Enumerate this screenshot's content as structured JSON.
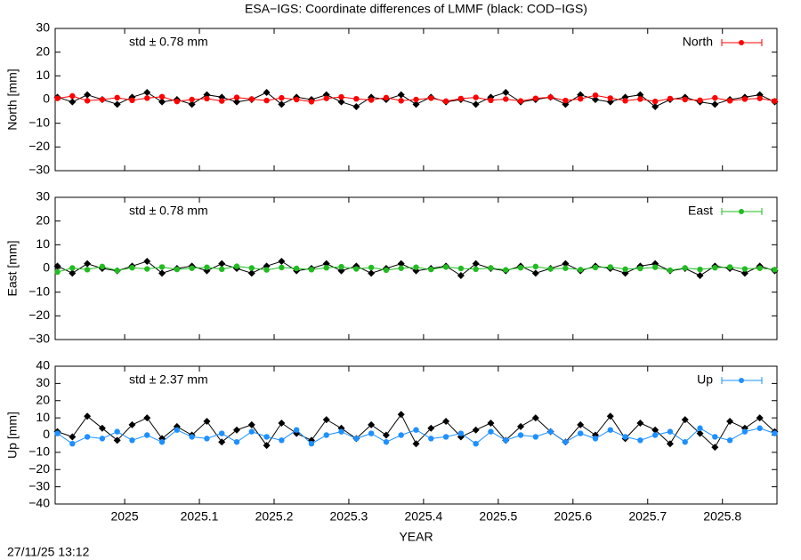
{
  "chart_data": [
    {
      "type": "line",
      "title": "ESA−IGS: Coordinate differences of LMMF (black: COD−IGS)",
      "ylabel": "North [mm]",
      "annotation": "std ± 0.78 mm",
      "x": [
        2024.91,
        2024.93,
        2024.95,
        2024.97,
        2024.99,
        2025.01,
        2025.03,
        2025.05,
        2025.07,
        2025.09,
        2025.11,
        2025.13,
        2025.15,
        2025.17,
        2025.19,
        2025.21,
        2025.23,
        2025.25,
        2025.27,
        2025.29,
        2025.31,
        2025.33,
        2025.35,
        2025.37,
        2025.39,
        2025.41,
        2025.43,
        2025.45,
        2025.47,
        2025.49,
        2025.51,
        2025.53,
        2025.55,
        2025.57,
        2025.59,
        2025.61,
        2025.63,
        2025.65,
        2025.67,
        2025.69,
        2025.71,
        2025.73,
        2025.75,
        2025.77,
        2025.79,
        2025.81,
        2025.83,
        2025.85,
        2025.87
      ],
      "series": [
        {
          "color": "#000000",
          "values": [
            1,
            -1,
            2,
            0,
            -2,
            1,
            3,
            -1,
            0,
            -2,
            2,
            1,
            -1,
            0,
            3,
            -2,
            1,
            0,
            2,
            -1,
            -3,
            1,
            0,
            2,
            -2,
            1,
            -1,
            0,
            -2,
            1,
            3,
            -1,
            0,
            1,
            -2,
            2,
            0,
            -1,
            1,
            2,
            -3,
            0,
            1,
            -1,
            -2,
            0,
            1,
            2,
            -1
          ]
        },
        {
          "name": "North",
          "color": "#ff0000",
          "values": [
            0.5,
            1.5,
            -0.5,
            0,
            0.8,
            -0.3,
            0.6,
            1.2,
            -0.8,
            0,
            0.4,
            -0.6,
            0.9,
            0.2,
            -0.4,
            0.7,
            0,
            -0.9,
            0.5,
            1.1,
            0.3,
            -0.2,
            0.8,
            -0.5,
            0,
            0.6,
            -0.7,
            0.4,
            0.9,
            -0.3,
            0.2,
            -0.6,
            0.5,
            1,
            -0.4,
            0.3,
            1.8,
            0.6,
            -0.5,
            0.2,
            -0.8,
            0.4,
            0,
            -0.3,
            0.7,
            -0.5,
            0.2,
            0.5,
            -0.6
          ]
        }
      ],
      "xlim": [
        2024.907,
        2025.873
      ],
      "xticks": [
        2025,
        2025.1,
        2025.2,
        2025.3,
        2025.4,
        2025.5,
        2025.6,
        2025.7,
        2025.8
      ],
      "ylim": [
        -30,
        30
      ],
      "yticks": [
        {
          "value": -30,
          "label": "−30"
        },
        {
          "value": -20,
          "label": "−20"
        },
        {
          "value": -10,
          "label": "−10"
        },
        0,
        10,
        20,
        30
      ],
      "legend": "top-right"
    },
    {
      "type": "line",
      "ylabel": "East [mm]",
      "annotation": "std ± 0.78 mm",
      "x": [
        2024.91,
        2024.93,
        2024.95,
        2024.97,
        2024.99,
        2025.01,
        2025.03,
        2025.05,
        2025.07,
        2025.09,
        2025.11,
        2025.13,
        2025.15,
        2025.17,
        2025.19,
        2025.21,
        2025.23,
        2025.25,
        2025.27,
        2025.29,
        2025.31,
        2025.33,
        2025.35,
        2025.37,
        2025.39,
        2025.41,
        2025.43,
        2025.45,
        2025.47,
        2025.49,
        2025.51,
        2025.53,
        2025.55,
        2025.57,
        2025.59,
        2025.61,
        2025.63,
        2025.65,
        2025.67,
        2025.69,
        2025.71,
        2025.73,
        2025.75,
        2025.77,
        2025.79,
        2025.81,
        2025.83,
        2025.85,
        2025.87
      ],
      "series": [
        {
          "color": "#000000",
          "values": [
            1,
            -2,
            2,
            0,
            -1,
            1,
            3,
            -2,
            0,
            1,
            -1,
            2,
            0,
            -2,
            1,
            3,
            -1,
            0,
            2,
            -1,
            1,
            -2,
            0,
            2,
            -1,
            0,
            1,
            -3,
            2,
            0,
            -1,
            1,
            -2,
            0,
            2,
            -1,
            1,
            0,
            -2,
            1,
            2,
            -1,
            0,
            -3,
            1,
            0,
            -2,
            1,
            -1
          ]
        },
        {
          "name": "East",
          "color": "#22bb22",
          "values": [
            -1.5,
            0.2,
            -0.5,
            0.8,
            -0.9,
            0.3,
            -0.2,
            0.6,
            -0.4,
            0.1,
            0.5,
            -0.3,
            0.9,
            0.2,
            -0.6,
            0.4,
            0,
            -0.5,
            0.3,
            0.7,
            -0.2,
            0.4,
            -0.7,
            0.1,
            0.5,
            -0.4,
            0.6,
            0,
            -0.3,
            0.2,
            -0.6,
            0.3,
            0.8,
            -0.2,
            0.1,
            -0.5,
            0.4,
            0.6,
            -0.3,
            0,
            0.5,
            -0.8,
            0.2,
            -0.4,
            0.3,
            0.6,
            -0.2,
            0.1,
            -0.5
          ]
        }
      ],
      "xlim": [
        2024.907,
        2025.873
      ],
      "xticks": [
        2025,
        2025.1,
        2025.2,
        2025.3,
        2025.4,
        2025.5,
        2025.6,
        2025.7,
        2025.8
      ],
      "ylim": [
        -30,
        30
      ],
      "yticks": [
        {
          "value": -30,
          "label": "−30"
        },
        {
          "value": -20,
          "label": "−20"
        },
        {
          "value": -10,
          "label": "−10"
        },
        0,
        10,
        20,
        30
      ],
      "legend": "top-right"
    },
    {
      "type": "line",
      "ylabel": "Up [mm]",
      "xlabel": "YEAR",
      "annotation": "std ± 2.37 mm",
      "footnote": "27/11/25 13:12",
      "x": [
        2024.91,
        2024.93,
        2024.95,
        2024.97,
        2024.99,
        2025.01,
        2025.03,
        2025.05,
        2025.07,
        2025.09,
        2025.11,
        2025.13,
        2025.15,
        2025.17,
        2025.19,
        2025.21,
        2025.23,
        2025.25,
        2025.27,
        2025.29,
        2025.31,
        2025.33,
        2025.35,
        2025.37,
        2025.39,
        2025.41,
        2025.43,
        2025.45,
        2025.47,
        2025.49,
        2025.51,
        2025.53,
        2025.55,
        2025.57,
        2025.59,
        2025.61,
        2025.63,
        2025.65,
        2025.67,
        2025.69,
        2025.71,
        2025.73,
        2025.75,
        2025.77,
        2025.79,
        2025.81,
        2025.83,
        2025.85,
        2025.87
      ],
      "series": [
        {
          "color": "#000000",
          "values": [
            2,
            -1,
            11,
            4,
            -3,
            6,
            10,
            -2,
            5,
            0,
            8,
            -4,
            3,
            6,
            -6,
            7,
            1,
            -3,
            9,
            4,
            -2,
            6,
            0,
            12,
            -5,
            4,
            8,
            -1,
            3,
            7,
            -3,
            5,
            10,
            2,
            -4,
            6,
            0,
            11,
            -2,
            7,
            3,
            -5,
            9,
            1,
            -7,
            8,
            4,
            10,
            2
          ]
        },
        {
          "name": "Up",
          "color": "#1e90ff",
          "values": [
            1,
            -5,
            -1,
            -2,
            2,
            -3,
            0,
            -4,
            3,
            -1,
            -2,
            1,
            -4,
            2,
            -1,
            -3,
            3,
            -5,
            0,
            2,
            -2,
            1,
            -4,
            0,
            3,
            -2,
            -1,
            1,
            -5,
            2,
            -3,
            0,
            -1,
            2,
            -4,
            1,
            -2,
            3,
            -1,
            -3,
            0,
            2,
            -4,
            4,
            -1,
            -3,
            2,
            4,
            1
          ]
        }
      ],
      "xlim": [
        2024.907,
        2025.873
      ],
      "xticks": [
        2025,
        2025.1,
        2025.2,
        2025.3,
        2025.4,
        2025.5,
        2025.6,
        2025.7,
        2025.8
      ],
      "ylim": [
        -40,
        40
      ],
      "yticks": [
        {
          "value": -40,
          "label": "−40"
        },
        {
          "value": -30,
          "label": "−30"
        },
        {
          "value": -20,
          "label": "−20"
        },
        {
          "value": -10,
          "label": "−10"
        },
        0,
        10,
        20,
        30,
        40
      ],
      "legend": "top-right"
    }
  ]
}
